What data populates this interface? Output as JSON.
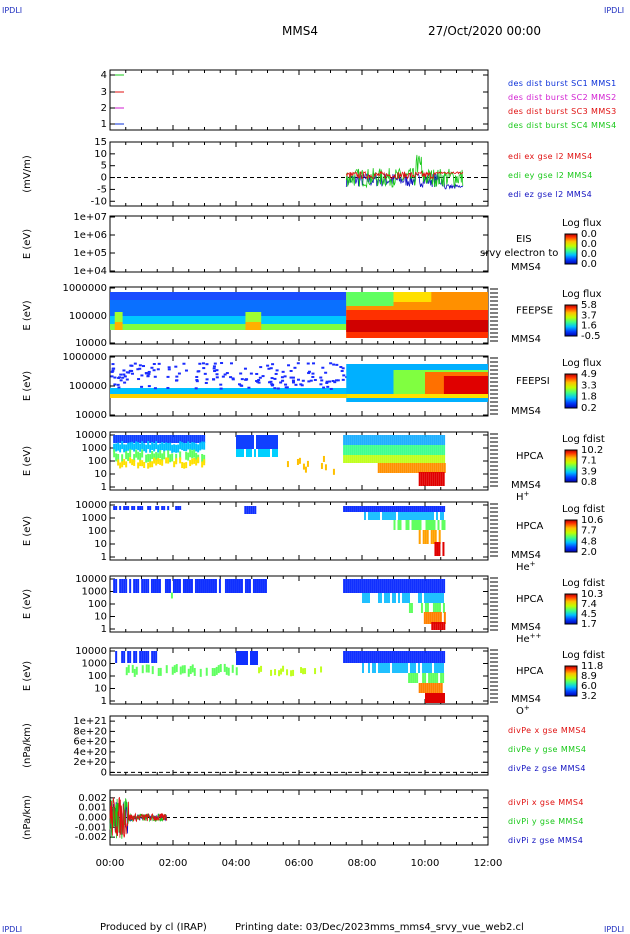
{
  "header": {
    "title": "MMS4",
    "date": "27/Oct/2020 00:00",
    "corner_tl": "IPDLI",
    "corner_tr": "IPDLI",
    "corner_bl": "IPDLI",
    "corner_br": "IPDLI"
  },
  "footer": {
    "produced_by": "Produced by cl (IRAP)",
    "printing_date": "Printing date: 03/Dec/2023",
    "file": "mms_mms4_srvy_vue_web2.cl"
  },
  "colors": {
    "mms1": "#0a2fd9",
    "mms2": "#d21ed2",
    "mms3": "#e01010",
    "mms4": "#18c818",
    "x": "#e01010",
    "y": "#18c818",
    "z": "#1010c0"
  },
  "x_axis": {
    "ticks": [
      "00:00",
      "02:00",
      "04:00",
      "06:00",
      "08:00",
      "10:00",
      "12:00"
    ]
  },
  "chart_data": [
    {
      "type": "line",
      "panel": "des-dist-burst",
      "ylim": [
        0.5,
        4.5
      ],
      "y_ticks": [
        "4",
        "3",
        "2",
        "1"
      ],
      "legend": [
        "des dist burst SC1 MMS1",
        "des dist burst SC2 MMS2",
        "des dist burst SC3 MMS3",
        "des dist burst SC4 MMS4"
      ],
      "series": []
    },
    {
      "type": "line",
      "panel": "edi-e-gse",
      "ylabel": "(mV/m)",
      "ylim": [
        -12,
        15
      ],
      "y_ticks": [
        "15",
        "10",
        "5",
        "0",
        "-5",
        "-10"
      ],
      "legend": [
        "edi ex gse l2 MMS4",
        "edi ey gse l2 MMS4",
        "edi ez gse l2 MMS4"
      ],
      "x_range_hours": [
        7.5,
        11.2
      ]
    },
    {
      "type": "heatmap",
      "panel": "EIS",
      "ylabel": "E (eV)",
      "y_ticks": [
        "1e+07",
        "1e+06",
        "1e+05",
        "1e+04"
      ],
      "label1": "EIS",
      "label2": "srvy electron to",
      "label3": "MMS4",
      "cbar_title": "Log flux",
      "cbar_ticks": [
        "0.0",
        "0.0",
        "0.0",
        "0.0"
      ]
    },
    {
      "type": "heatmap",
      "panel": "FEEPSE",
      "ylabel": "E (eV)",
      "y_ticks": [
        "1000000",
        "100000",
        "10000"
      ],
      "label1": "FEEPSE",
      "label3": "MMS4",
      "cbar_title": "Log flux",
      "cbar_ticks": [
        "5.8",
        "3.7",
        "1.6",
        "-0.5"
      ]
    },
    {
      "type": "heatmap",
      "panel": "FEEPSI",
      "ylabel": "E (eV)",
      "y_ticks": [
        "1000000",
        "100000",
        "10000"
      ],
      "label1": "FEEPSI",
      "label3": "MMS4",
      "cbar_title": "Log flux",
      "cbar_ticks": [
        "4.9",
        "3.3",
        "1.8",
        "0.2"
      ]
    },
    {
      "type": "heatmap",
      "panel": "HPCA-H+",
      "ylabel": "E (eV)",
      "y_ticks": [
        "10000",
        "1000",
        "100",
        "10",
        "1"
      ],
      "label1": "HPCA",
      "label3": "MMS4",
      "species": "H",
      "charge": "+",
      "cbar_title": "Log fdist",
      "cbar_ticks": [
        "10.2",
        "7.1",
        "3.9",
        "0.8"
      ]
    },
    {
      "type": "heatmap",
      "panel": "HPCA-He+",
      "ylabel": "E (eV)",
      "y_ticks": [
        "10000",
        "1000",
        "100",
        "10",
        "1"
      ],
      "label1": "HPCA",
      "label3": "MMS4",
      "species": "He",
      "charge": "+",
      "cbar_title": "Log fdist",
      "cbar_ticks": [
        "10.6",
        "7.7",
        "4.8",
        "2.0"
      ]
    },
    {
      "type": "heatmap",
      "panel": "HPCA-He++",
      "ylabel": "E (eV)",
      "y_ticks": [
        "10000",
        "1000",
        "100",
        "10",
        "1"
      ],
      "label1": "HPCA",
      "label3": "MMS4",
      "species": "He",
      "charge": "++",
      "cbar_title": "Log fdist",
      "cbar_ticks": [
        "10.3",
        "7.4",
        "4.5",
        "1.7"
      ]
    },
    {
      "type": "heatmap",
      "panel": "HPCA-O+",
      "ylabel": "E (eV)",
      "y_ticks": [
        "10000",
        "1000",
        "100",
        "10",
        "1"
      ],
      "label1": "HPCA",
      "label3": "MMS4",
      "species": "O",
      "charge": "+",
      "cbar_title": "Log fdist",
      "cbar_ticks": [
        "11.8",
        "8.9",
        "6.0",
        "3.2"
      ]
    },
    {
      "type": "line",
      "panel": "divPe",
      "ylabel": "(nPa/km)",
      "ylim": [
        -5e+19,
        1.1e+21
      ],
      "y_ticks": [
        "1e+21",
        "8e+20",
        "6e+20",
        "4e+20",
        "2e+20",
        "0"
      ],
      "legend": [
        "divPe x gse MMS4",
        "divPe y gse MMS4",
        "divPe z gse MMS4"
      ]
    },
    {
      "type": "line",
      "panel": "divPi",
      "ylabel": "(nPa/km)",
      "ylim": [
        -0.0028,
        0.0028
      ],
      "y_ticks": [
        "0.002",
        "0.001",
        "0.000",
        "-0.001",
        "-0.002"
      ],
      "legend": [
        "divPi x gse MMS4",
        "divPi y gse MMS4",
        "divPi z gse MMS4"
      ],
      "x_range_hours": [
        0,
        1.8
      ]
    }
  ]
}
